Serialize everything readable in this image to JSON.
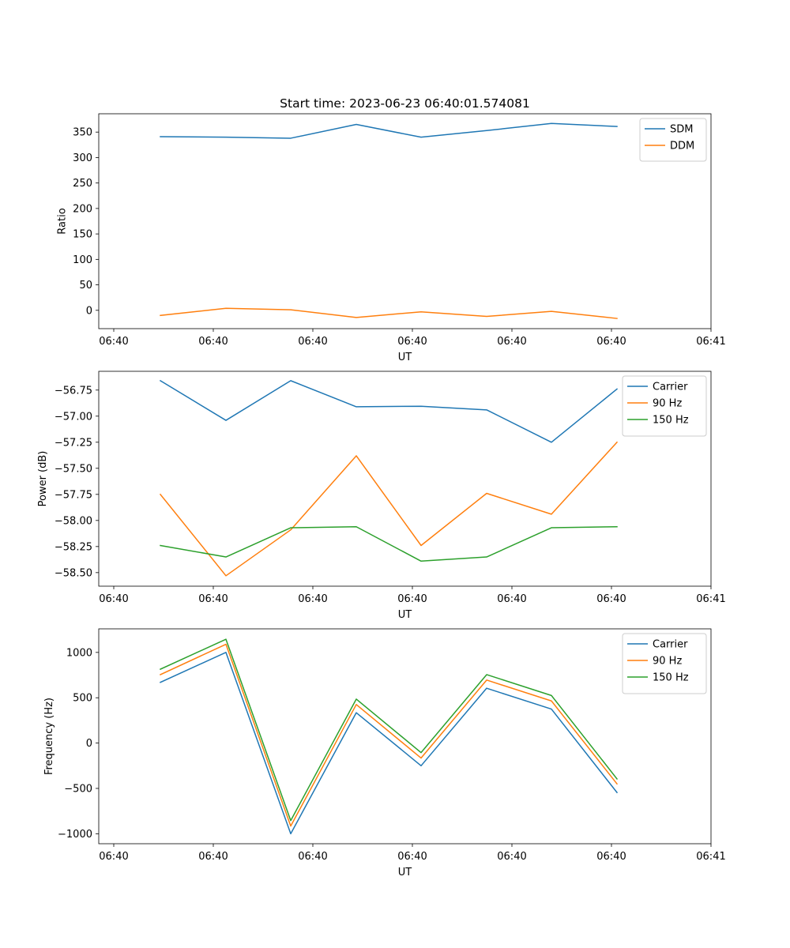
{
  "figure_title": "Start time: 2023-06-23 06:40:01.574081",
  "chart_data": [
    {
      "type": "line",
      "xlabel": "UT",
      "ylabel": "Ratio",
      "x_tick_labels": [
        "06:40",
        "06:40",
        "06:40",
        "06:40",
        "06:40",
        "06:40",
        "06:41"
      ],
      "y_ticks": [
        0,
        50,
        100,
        150,
        200,
        250,
        300,
        350
      ],
      "y_tick_labels": [
        "0",
        "50",
        "100",
        "150",
        "200",
        "250",
        "300",
        "350"
      ],
      "ylim": [
        -36,
        386
      ],
      "legend_position": "upper right",
      "series": [
        {
          "name": "SDM",
          "color": "#1f77b4",
          "values": [
            341,
            340,
            338,
            365,
            340,
            353,
            367,
            361
          ]
        },
        {
          "name": "DDM",
          "color": "#ff7f0e",
          "values": [
            -10,
            4,
            1,
            -14,
            -3,
            -12,
            -2,
            -16
          ]
        }
      ]
    },
    {
      "type": "line",
      "xlabel": "UT",
      "ylabel": "Power (dB)",
      "x_tick_labels": [
        "06:40",
        "06:40",
        "06:40",
        "06:40",
        "06:40",
        "06:40",
        "06:41"
      ],
      "y_ticks": [
        -58.5,
        -58.25,
        -58.0,
        -57.75,
        -57.5,
        -57.25,
        -57.0,
        -56.75
      ],
      "y_tick_labels": [
        "−58.50",
        "−58.25",
        "−58.00",
        "−57.75",
        "−57.50",
        "−57.25",
        "−57.00",
        "−56.75"
      ],
      "ylim": [
        -58.63,
        -56.57
      ],
      "legend_position": "upper right",
      "series": [
        {
          "name": "Carrier",
          "color": "#1f77b4",
          "values": [
            -56.66,
            -57.04,
            -56.66,
            -56.91,
            -56.905,
            -56.94,
            -57.25,
            -56.74
          ]
        },
        {
          "name": "90 Hz",
          "color": "#ff7f0e",
          "values": [
            -57.75,
            -58.53,
            -58.09,
            -57.38,
            -58.24,
            -57.74,
            -57.94,
            -57.25
          ]
        },
        {
          "name": "150 Hz",
          "color": "#2ca02c",
          "values": [
            -58.24,
            -58.35,
            -58.07,
            -58.06,
            -58.39,
            -58.35,
            -58.07,
            -58.06
          ]
        }
      ]
    },
    {
      "type": "line",
      "xlabel": "UT",
      "ylabel": "Frequency (Hz)",
      "x_tick_labels": [
        "06:40",
        "06:40",
        "06:40",
        "06:40",
        "06:40",
        "06:40",
        "06:41"
      ],
      "y_ticks": [
        -1000,
        -500,
        0,
        500,
        1000
      ],
      "y_tick_labels": [
        "−1000",
        "−500",
        "0",
        "500",
        "1000"
      ],
      "ylim": [
        -1110,
        1260
      ],
      "legend_position": "upper right",
      "series": [
        {
          "name": "Carrier",
          "color": "#1f77b4",
          "values": [
            670,
            1000,
            -1000,
            335,
            -250,
            605,
            375,
            -545
          ]
        },
        {
          "name": "90 Hz",
          "color": "#ff7f0e",
          "values": [
            755,
            1090,
            -915,
            425,
            -165,
            695,
            465,
            -450
          ]
        },
        {
          "name": "150 Hz",
          "color": "#2ca02c",
          "values": [
            815,
            1145,
            -855,
            485,
            -105,
            755,
            525,
            -395
          ]
        }
      ]
    }
  ]
}
